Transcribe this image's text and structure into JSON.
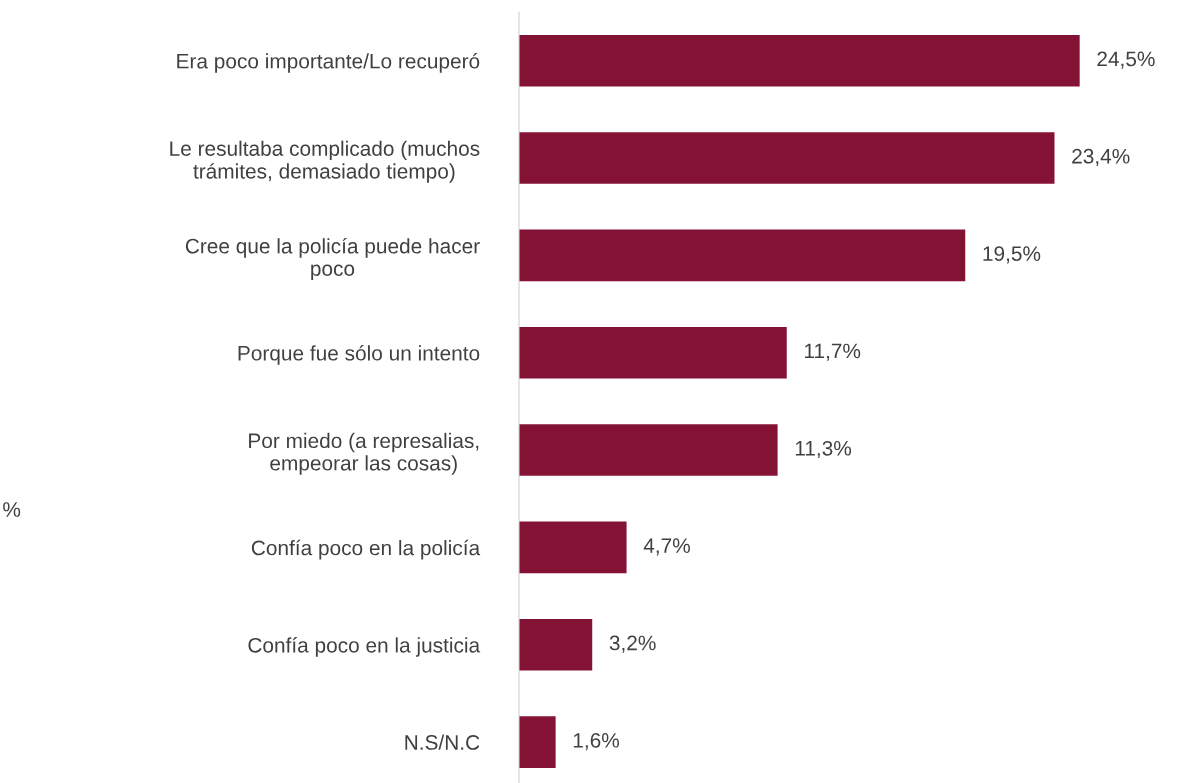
{
  "chart_data": {
    "type": "bar",
    "orientation": "horizontal",
    "categories": [
      "Era poco importante/Lo recuperó",
      "Le resultaba complicado (muchos\ntrámites, demasiado tiempo)",
      "Cree que la policía puede hacer\npoco",
      "Porque fue sólo un intento",
      "Por miedo (a represalias,\nempeorar las cosas)",
      "Confía poco en la policía",
      "Confía poco en la justicia",
      "N.S/N.C"
    ],
    "values": [
      24.5,
      23.4,
      19.5,
      11.7,
      11.3,
      4.7,
      3.2,
      1.6
    ],
    "value_labels": [
      "24,5%",
      "23,4%",
      "19,5%",
      "11,7%",
      "11,3%",
      "4,7%",
      "3,2%",
      "1,6%"
    ],
    "color": "#841234",
    "tick_labels": "y",
    "grid": false,
    "legend": false,
    "annotations": [
      "%"
    ]
  }
}
